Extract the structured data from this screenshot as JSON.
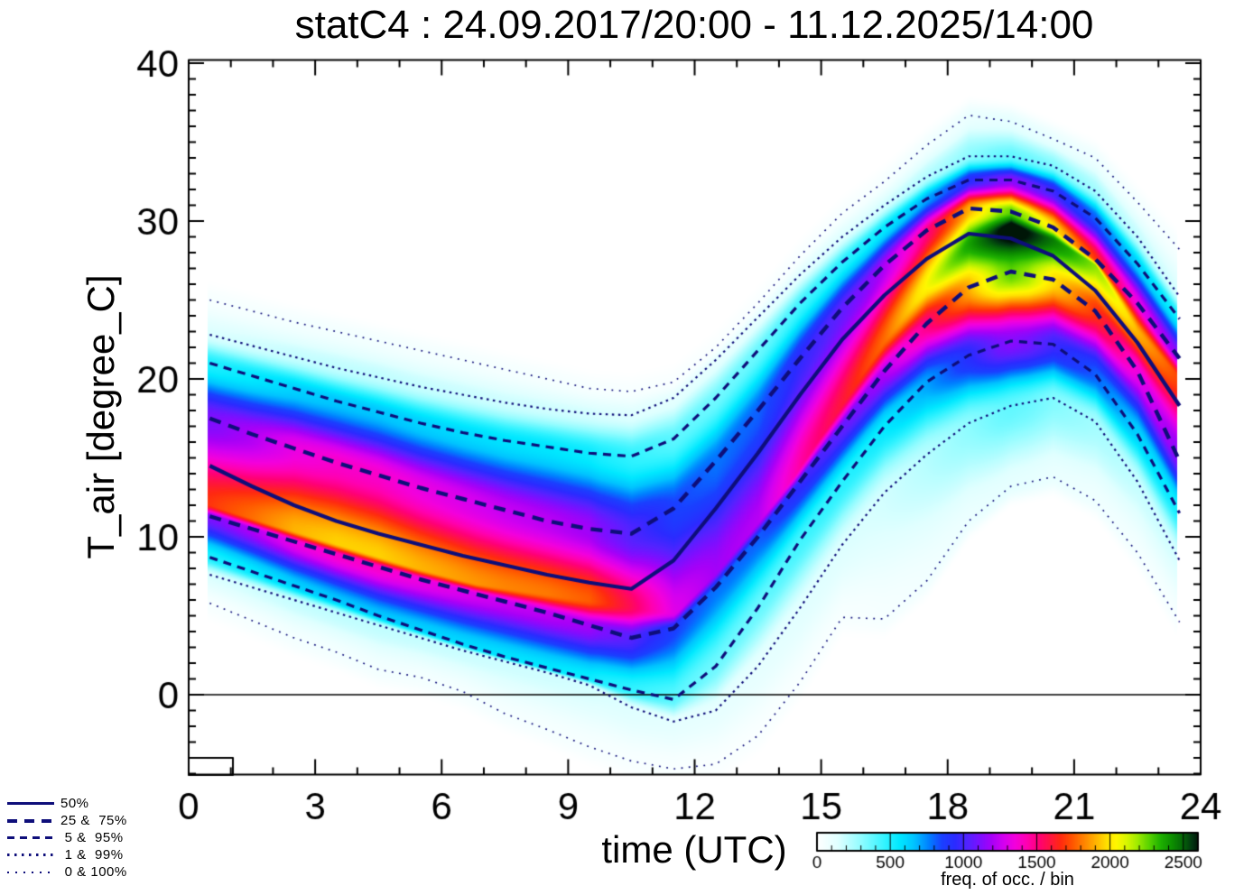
{
  "chart_data": {
    "type": "heatmap",
    "title": "statC4 : 24.09.2017/20:00 - 11.12.2025/14:00",
    "xlabel": "time (UTC)",
    "ylabel": "T_air [degree_C]",
    "x_range": [
      0,
      24
    ],
    "y_range": [
      -5.1,
      40.2
    ],
    "x_ticks_major": [
      0,
      3,
      6,
      9,
      12,
      15,
      18,
      21,
      24
    ],
    "x_minor_step": 1,
    "y_ticks_major": [
      0,
      10,
      20,
      30,
      40
    ],
    "y_minor_step": 1,
    "zero_line_temperature": 0,
    "data_t_range": [
      0.47,
      23.42
    ],
    "hours": [
      0.5,
      1.5,
      2.5,
      3.5,
      4.5,
      5.5,
      6.5,
      7.5,
      8.5,
      9.5,
      10.5,
      11.5,
      12.5,
      13.5,
      14.5,
      15.5,
      16.5,
      17.5,
      18.5,
      19.5,
      20.5,
      21.5,
      22.5,
      23.5
    ],
    "percentiles": {
      "p0": [
        5.8,
        4.7,
        3.6,
        2.7,
        1.6,
        1.1,
        0.2,
        -1.2,
        -2.2,
        -3.3,
        -4.2,
        -4.7,
        -4.4,
        -2.6,
        0.8,
        4.9,
        4.8,
        7.2,
        11.0,
        13.2,
        13.8,
        12.3,
        9.0,
        4.6
      ],
      "p1": [
        7.6,
        6.8,
        6.0,
        5.2,
        4.4,
        3.6,
        2.8,
        2.1,
        1.4,
        0.6,
        -0.8,
        -1.7,
        -1.0,
        1.8,
        5.5,
        9.5,
        12.8,
        15.2,
        17.2,
        18.3,
        18.8,
        17.3,
        13.5,
        8.5
      ],
      "p5": [
        8.7,
        7.8,
        6.9,
        6.0,
        5.0,
        4.1,
        3.2,
        2.4,
        1.7,
        1.0,
        0.3,
        -0.3,
        1.8,
        5.5,
        9.8,
        13.5,
        17.0,
        19.8,
        21.5,
        22.4,
        22.2,
        20.3,
        16.5,
        11.5
      ],
      "p25": [
        11.3,
        10.5,
        9.7,
        8.9,
        8.1,
        7.3,
        6.6,
        5.9,
        5.2,
        4.4,
        3.6,
        4.2,
        6.8,
        10.0,
        13.5,
        17.0,
        20.5,
        23.5,
        25.8,
        26.8,
        26.3,
        24.3,
        20.5,
        14.8
      ],
      "p50": [
        14.5,
        13.2,
        12.0,
        11.0,
        10.2,
        9.5,
        8.8,
        8.2,
        7.6,
        7.1,
        6.7,
        8.5,
        11.8,
        15.3,
        19.0,
        22.5,
        25.3,
        27.6,
        29.2,
        28.9,
        27.8,
        25.6,
        22.3,
        18.3
      ],
      "p75": [
        17.5,
        16.5,
        15.6,
        14.7,
        13.9,
        13.1,
        12.4,
        11.7,
        11.0,
        10.5,
        10.2,
        11.8,
        14.8,
        18.0,
        21.3,
        24.5,
        27.2,
        29.4,
        30.8,
        30.6,
        29.6,
        27.6,
        24.8,
        21.3
      ],
      "p95": [
        21.0,
        20.2,
        19.4,
        18.6,
        17.9,
        17.2,
        16.6,
        16.1,
        15.7,
        15.3,
        15.1,
        16.2,
        18.8,
        21.8,
        24.8,
        27.4,
        29.6,
        31.4,
        32.6,
        32.6,
        31.9,
        30.2,
        27.3,
        23.8
      ],
      "p99": [
        22.8,
        22.1,
        21.4,
        20.7,
        20.1,
        19.5,
        19.0,
        18.5,
        18.1,
        17.8,
        17.7,
        18.8,
        21.2,
        23.9,
        26.6,
        29.0,
        31.0,
        32.8,
        34.1,
        34.1,
        33.5,
        31.9,
        29.0,
        25.2
      ],
      "p100": [
        25.0,
        24.3,
        23.6,
        23.0,
        22.4,
        21.8,
        21.2,
        20.6,
        20.0,
        19.4,
        19.2,
        19.8,
        22.0,
        24.8,
        27.8,
        30.5,
        32.5,
        34.8,
        36.7,
        36.3,
        35.2,
        34.0,
        31.2,
        28.2
      ]
    },
    "density": {
      "mode_temperature": [
        12.0,
        11.0,
        9.9,
        8.9,
        8.2,
        7.7,
        7.2,
        6.8,
        6.4,
        6.0,
        5.6,
        5.2,
        7.0,
        10.5,
        14.5,
        18.5,
        22.5,
        26.0,
        28.6,
        29.6,
        28.8,
        27.2,
        23.0,
        20.0
      ],
      "amplitude": [
        1680,
        1780,
        1900,
        1950,
        1950,
        1900,
        1860,
        1820,
        1800,
        1750,
        1550,
        1300,
        1180,
        1220,
        1450,
        1600,
        1780,
        2050,
        2380,
        2700,
        2450,
        2200,
        1900,
        1700
      ]
    },
    "corner_box": {
      "t0": 0,
      "t1": 1.05,
      "T0": -5.09,
      "T1": -4.0
    }
  },
  "legend": {
    "items": [
      {
        "label": "50%",
        "percentiles": "50"
      },
      {
        "label": "25 &  75%",
        "percentiles": "25,75"
      },
      {
        "label": " 5 &  95%",
        "percentiles": "5,95"
      },
      {
        "label": " 1 &  99%",
        "percentiles": "1,99"
      },
      {
        "label": " 0 & 100%",
        "percentiles": "0,100"
      }
    ]
  },
  "colorbar": {
    "label": "freq. of occ. / bin",
    "ticks": [
      0,
      500,
      1000,
      1500,
      2000,
      2500
    ],
    "minor_step": 100,
    "range": [
      0,
      2600
    ],
    "stops": [
      [
        0,
        "#ffffff"
      ],
      [
        140,
        "#e0ffff"
      ],
      [
        300,
        "#8ffcff"
      ],
      [
        460,
        "#33f3ff"
      ],
      [
        560,
        "#00e8ff"
      ],
      [
        660,
        "#00c3ff"
      ],
      [
        760,
        "#0080ff"
      ],
      [
        850,
        "#1a40ff"
      ],
      [
        940,
        "#2b2bff"
      ],
      [
        1030,
        "#5522ff"
      ],
      [
        1110,
        "#7d0fff"
      ],
      [
        1190,
        "#a800f7"
      ],
      [
        1270,
        "#d400f0"
      ],
      [
        1350,
        "#f300dc"
      ],
      [
        1430,
        "#ff00b0"
      ],
      [
        1510,
        "#ff0077"
      ],
      [
        1590,
        "#ff1440"
      ],
      [
        1660,
        "#ff2a10"
      ],
      [
        1740,
        "#ff5500"
      ],
      [
        1820,
        "#ff8400"
      ],
      [
        1900,
        "#ffb300"
      ],
      [
        1975,
        "#ffe000"
      ],
      [
        2040,
        "#fff600"
      ],
      [
        2110,
        "#d8f600"
      ],
      [
        2180,
        "#a3ec00"
      ],
      [
        2260,
        "#5cd400"
      ],
      [
        2340,
        "#1fb200"
      ],
      [
        2420,
        "#0d8f00"
      ],
      [
        2500,
        "#056309"
      ],
      [
        2560,
        "#023311"
      ],
      [
        2600,
        "#001607"
      ]
    ]
  },
  "colors": {
    "percentile_line": "#0e0e7a",
    "zero_line": "#000000",
    "frame": "#000000",
    "background": "#ffffff",
    "text": "#000000"
  }
}
